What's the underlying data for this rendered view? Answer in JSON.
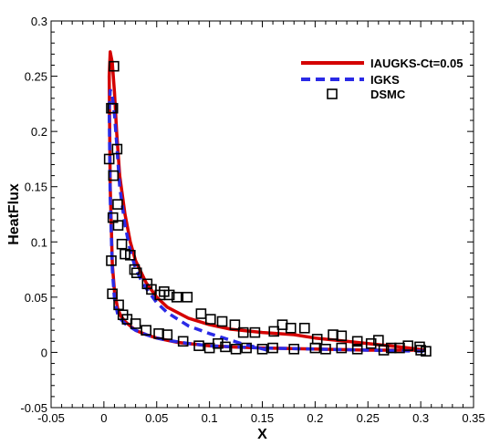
{
  "chart_data": {
    "type": "line",
    "title": "",
    "xlabel": "X",
    "ylabel": "HeatFlux",
    "xlim": [
      -0.05,
      0.35
    ],
    "ylim": [
      -0.05,
      0.3
    ],
    "xticks": [
      -0.05,
      0,
      0.05,
      0.1,
      0.15,
      0.2,
      0.25,
      0.3,
      0.35
    ],
    "xtick_labels": [
      "-0.05",
      "0",
      "0.05",
      "0.1",
      "0.15",
      "0.2",
      "0.25",
      "0.3",
      "0.35"
    ],
    "yticks": [
      -0.05,
      0,
      0.05,
      0.1,
      0.15,
      0.2,
      0.25,
      0.3
    ],
    "ytick_labels": [
      "-0.05",
      "0",
      "0.05",
      "0.1",
      "0.15",
      "0.2",
      "0.25",
      "0.3"
    ],
    "grid": false,
    "legend_position": "top-right",
    "series": [
      {
        "name": "IAUGKS-Ct=0.05",
        "style": "solid-line",
        "color": "#d40000",
        "x": [
          0.305,
          0.28,
          0.25,
          0.22,
          0.2,
          0.18,
          0.15,
          0.12,
          0.1,
          0.08,
          0.06,
          0.05,
          0.04,
          0.03,
          0.025,
          0.02,
          0.015,
          0.012,
          0.01,
          0.008,
          0.006,
          0.005,
          0.006,
          0.008,
          0.01,
          0.013,
          0.016,
          0.02,
          0.025,
          0.03,
          0.035,
          0.04,
          0.05,
          0.06,
          0.07,
          0.08,
          0.1,
          0.12,
          0.15,
          0.2,
          0.25,
          0.305
        ],
        "y": [
          0.002,
          0.005,
          0.008,
          0.011,
          0.013,
          0.016,
          0.018,
          0.021,
          0.025,
          0.031,
          0.041,
          0.05,
          0.063,
          0.083,
          0.1,
          0.125,
          0.16,
          0.2,
          0.235,
          0.262,
          0.272,
          0.25,
          0.15,
          0.08,
          0.055,
          0.04,
          0.033,
          0.028,
          0.024,
          0.02,
          0.018,
          0.016,
          0.013,
          0.011,
          0.009,
          0.008,
          0.006,
          0.005,
          0.004,
          0.003,
          0.002,
          0.002
        ]
      },
      {
        "name": "IGKS",
        "style": "dashed-line",
        "color": "#2a2ae6",
        "x": [
          0.155,
          0.13,
          0.1,
          0.08,
          0.06,
          0.05,
          0.04,
          0.035,
          0.03,
          0.025,
          0.02,
          0.015,
          0.012,
          0.01,
          0.008,
          0.006,
          0.005,
          0.006,
          0.008,
          0.01,
          0.013,
          0.016,
          0.02,
          0.025,
          0.03,
          0.04,
          0.05,
          0.06,
          0.08,
          0.1,
          0.15,
          0.2,
          0.25,
          0.305
        ],
        "y": [
          0.002,
          0.008,
          0.017,
          0.024,
          0.036,
          0.045,
          0.058,
          0.066,
          0.076,
          0.092,
          0.115,
          0.15,
          0.19,
          0.215,
          0.232,
          0.238,
          0.22,
          0.14,
          0.075,
          0.048,
          0.035,
          0.03,
          0.026,
          0.023,
          0.02,
          0.016,
          0.013,
          0.011,
          0.008,
          0.006,
          0.004,
          0.003,
          0.002,
          0.001
        ]
      },
      {
        "name": "DSMC",
        "style": "open-square-markers",
        "color": "#000000",
        "x": [
          0.0095,
          0.007,
          0.0085,
          0.0125,
          0.005,
          0.009,
          0.0085,
          0.013,
          0.0135,
          0.017,
          0.02,
          0.025,
          0.029,
          0.031,
          0.041,
          0.045,
          0.053,
          0.057,
          0.062,
          0.069,
          0.079,
          0.092,
          0.101,
          0.112,
          0.124,
          0.132,
          0.143,
          0.161,
          0.169,
          0.177,
          0.19,
          0.202,
          0.217,
          0.225,
          0.24,
          0.253,
          0.26,
          0.272,
          0.288,
          0.299,
          0.305,
          0.007,
          0.008,
          0.014,
          0.018,
          0.022,
          0.03,
          0.04,
          0.052,
          0.06,
          0.075,
          0.09,
          0.1,
          0.108,
          0.115,
          0.125,
          0.135,
          0.15,
          0.16,
          0.18,
          0.2,
          0.21,
          0.225,
          0.24,
          0.265,
          0.28,
          0.3
        ],
        "y": [
          0.259,
          0.221,
          0.221,
          0.184,
          0.175,
          0.16,
          0.122,
          0.134,
          0.115,
          0.098,
          0.089,
          0.088,
          0.075,
          0.072,
          0.062,
          0.057,
          0.052,
          0.055,
          0.052,
          0.05,
          0.05,
          0.035,
          0.03,
          0.028,
          0.025,
          0.018,
          0.018,
          0.019,
          0.025,
          0.022,
          0.022,
          0.012,
          0.016,
          0.015,
          0.01,
          0.008,
          0.011,
          0.004,
          0.006,
          0.005,
          0.001,
          0.083,
          0.053,
          0.043,
          0.034,
          0.03,
          0.026,
          0.02,
          0.017,
          0.016,
          0.01,
          0.006,
          0.004,
          0.008,
          0.005,
          0.003,
          0.004,
          0.003,
          0.004,
          0.003,
          0.004,
          0.003,
          0.004,
          0.003,
          0.002,
          0.004,
          0.002
        ]
      }
    ]
  }
}
